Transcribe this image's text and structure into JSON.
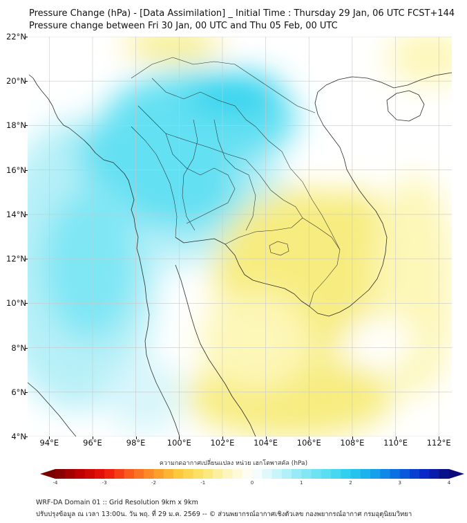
{
  "title_line1": "Pressure Change (hPa) - [Data Assimilation] _ Initial Time : Thursday 29 Jan, 06 UTC FCST+144",
  "title_line2": "Pressure change between Fri 30 Jan, 00 UTC and Thu 05 Feb, 00 UTC",
  "map": {
    "lat_range": [
      4,
      22
    ],
    "lon_range": [
      93,
      112.6
    ],
    "lat_labels": [
      "22°N",
      "20°N",
      "18°N",
      "16°N",
      "14°N",
      "12°N",
      "10°N",
      "8°N",
      "6°N",
      "4°N"
    ],
    "lon_labels": [
      "94°E",
      "96°E",
      "98°E",
      "100°E",
      "102°E",
      "104°E",
      "106°E",
      "108°E",
      "110°E",
      "112°E"
    ],
    "gridlines": true,
    "colors": {
      "neutral": "#ffffff",
      "light_cyan": "#b8f0f8",
      "cyan": "#63e0f2",
      "strong_cyan": "#2fd3ee",
      "light_yellow": "#fdf7b8",
      "yellow": "#f7ec7f",
      "coastline": "#2a2a2a"
    }
  },
  "colorbar": {
    "title": "ความกดอากาศเปลี่ยนแปลง หน่วย เฮกโตพาสคัล (hPa)",
    "min": -4,
    "max": 4,
    "tick_labels": [
      "-4",
      "-3",
      "-2",
      "-1",
      "0",
      "1",
      "2",
      "3",
      "4"
    ],
    "extend": "both"
  },
  "footer": {
    "line1": "WRF-DA Domain 01 :: Grid Resolution 9km x 9km",
    "line2": "ปรับปรุงข้อมูล ณ เวลา 13:00น. วัน พฤ. ที่ 29 ม.ค. 2569 -- © ส่วนพยากรณ์อากาศเชิงตัวเลข กองพยากรณ์อากาศ กรมอุตุนิยมวิทยา"
  }
}
